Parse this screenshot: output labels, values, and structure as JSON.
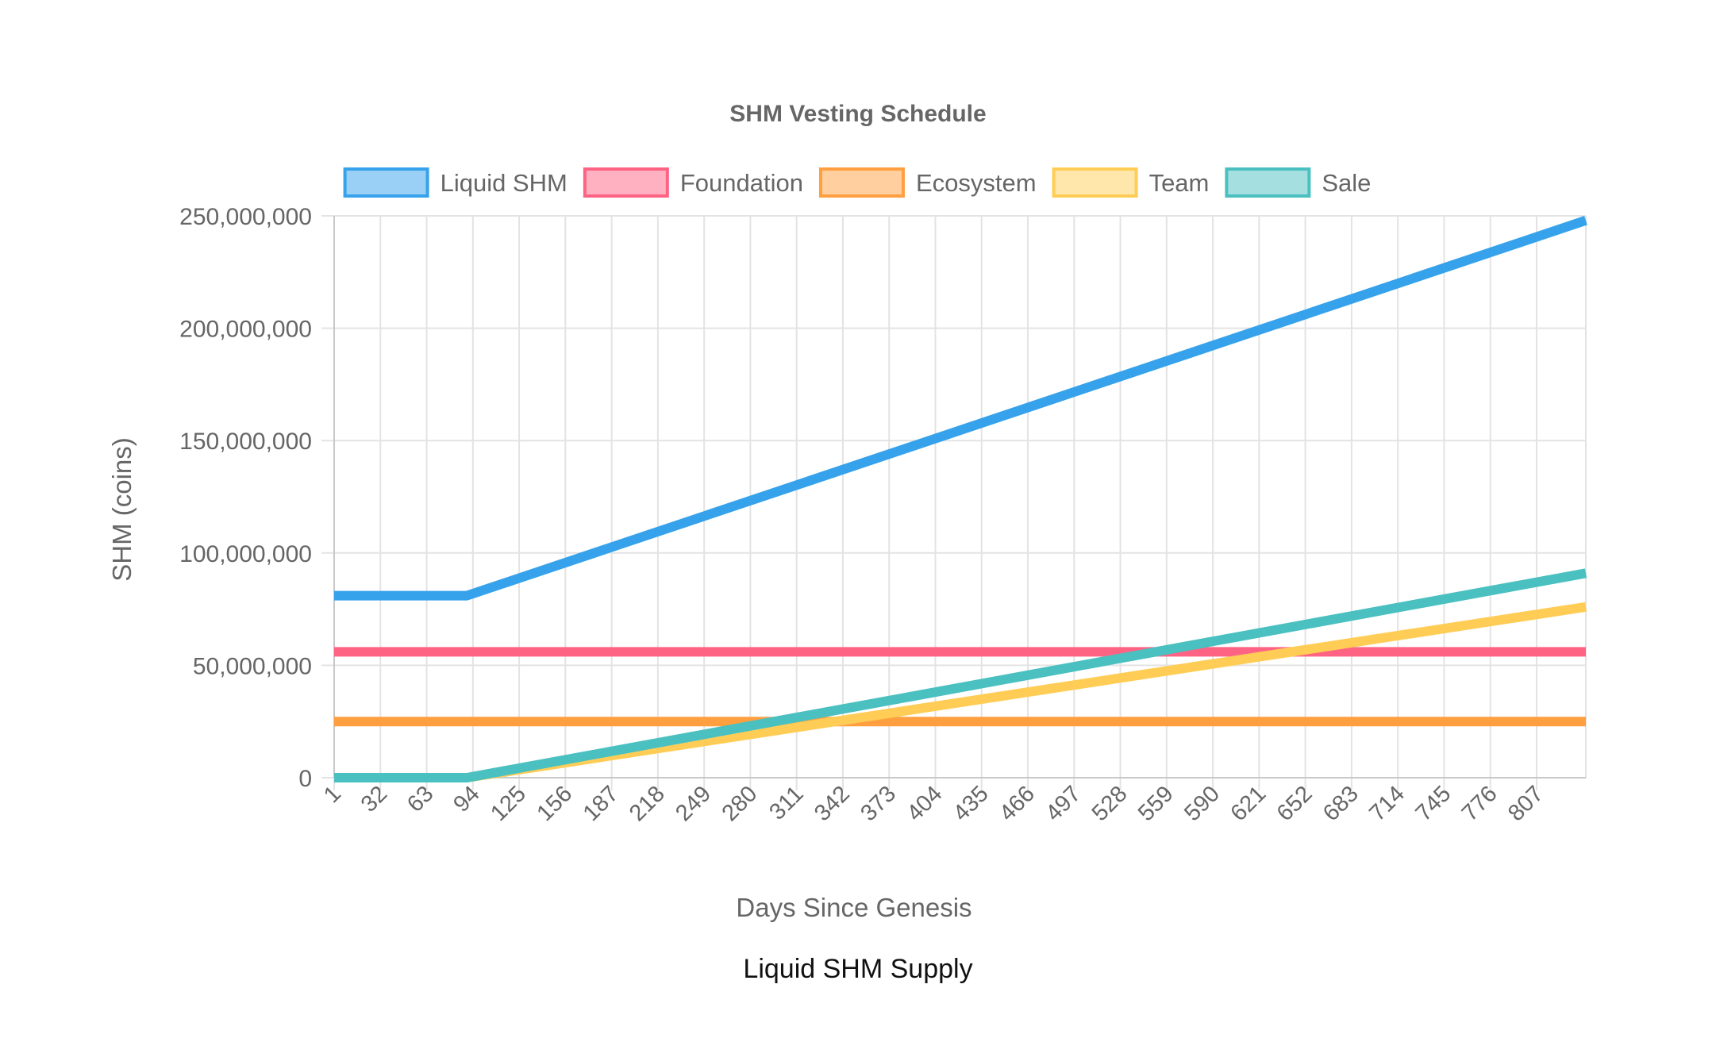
{
  "chart_data": {
    "type": "line",
    "title": "SHM Vesting Schedule",
    "xlabel": "Days Since Genesis",
    "ylabel": "SHM (coins)",
    "x_range": [
      1,
      840
    ],
    "ylim": [
      0,
      250000000
    ],
    "y_ticks": [
      0,
      50000000,
      100000000,
      150000000,
      200000000,
      250000000
    ],
    "y_tick_labels": [
      "0",
      "50,000,000",
      "100,000,000",
      "150,000,000",
      "200,000,000",
      "250,000,000"
    ],
    "x_ticks": [
      1,
      32,
      63,
      94,
      125,
      156,
      187,
      218,
      249,
      280,
      311,
      342,
      373,
      404,
      435,
      466,
      497,
      528,
      559,
      590,
      621,
      652,
      683,
      714,
      745,
      776,
      807
    ],
    "x_tick_labels": [
      "1",
      "32",
      "63",
      "94",
      "125",
      "156",
      "187",
      "218",
      "249",
      "280",
      "311",
      "342",
      "373",
      "404",
      "435",
      "466",
      "497",
      "528",
      "559",
      "590",
      "621",
      "652",
      "683",
      "714",
      "745",
      "776",
      "807"
    ],
    "grid": true,
    "legend_position": "top",
    "series": [
      {
        "name": "Liquid SHM",
        "color": "#36a2eb",
        "fill": "#9ad0f5",
        "x": [
          1,
          90,
          840
        ],
        "values": [
          81000000,
          81000000,
          248000000
        ]
      },
      {
        "name": "Foundation",
        "color": "#ff6384",
        "fill": "#ffb1c1",
        "x": [
          1,
          840
        ],
        "values": [
          56000000,
          56000000
        ]
      },
      {
        "name": "Ecosystem",
        "color": "#ff9f40",
        "fill": "#ffcf9f",
        "x": [
          1,
          840
        ],
        "values": [
          25000000,
          25000000
        ]
      },
      {
        "name": "Team",
        "color": "#ffcd56",
        "fill": "#ffe6aa",
        "x": [
          1,
          90,
          840
        ],
        "values": [
          0,
          0,
          76000000
        ]
      },
      {
        "name": "Sale",
        "color": "#4bc0c0",
        "fill": "#a5dfdf",
        "x": [
          1,
          90,
          840
        ],
        "values": [
          0,
          0,
          91000000
        ]
      }
    ]
  },
  "caption": "Liquid SHM Supply"
}
